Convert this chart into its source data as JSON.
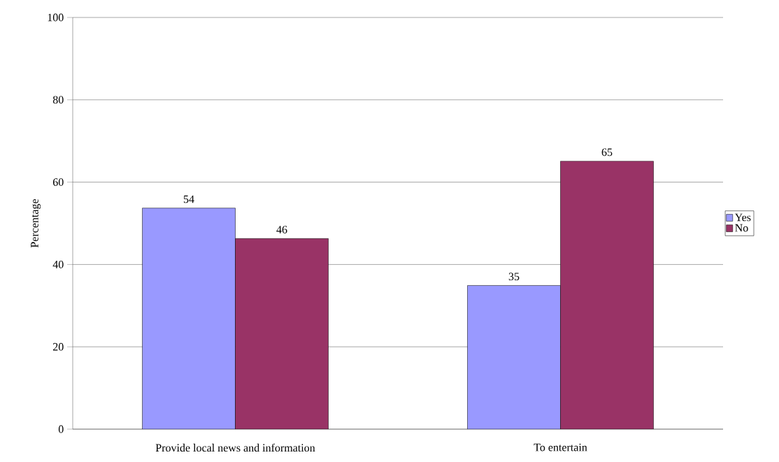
{
  "chart_data": {
    "type": "bar",
    "ylabel": "Percentage",
    "categories": [
      "Provide local news and information",
      "To entertain"
    ],
    "series": [
      {
        "name": "Yes",
        "color": "#9999ff",
        "values": [
          53.7,
          34.9
        ],
        "value_labels": [
          "54",
          "35"
        ]
      },
      {
        "name": "No",
        "color": "#993366",
        "values": [
          46.3,
          65.1
        ],
        "value_labels": [
          "46",
          "65"
        ]
      }
    ],
    "ylim": [
      0,
      100
    ],
    "yticks": [
      0,
      20,
      40,
      60,
      80,
      100
    ],
    "grid": "y",
    "legend": "right"
  }
}
